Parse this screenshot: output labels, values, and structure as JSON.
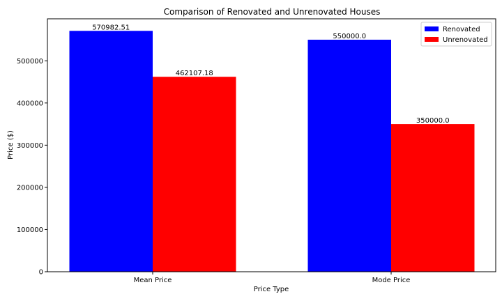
{
  "chart_data": {
    "type": "bar",
    "title": "Comparison of Renovated and Unrenovated Houses",
    "xlabel": "Price Type",
    "ylabel": "Price ($)",
    "categories": [
      "Mean Price",
      "Mode Price"
    ],
    "series": [
      {
        "name": "Renovated",
        "color": "#0000ff",
        "values": [
          570982.51,
          550000.0
        ],
        "labels": [
          "570982.51",
          "550000.0"
        ]
      },
      {
        "name": "Unrenovated",
        "color": "#ff0000",
        "values": [
          462107.18,
          350000.0
        ],
        "labels": [
          "462107.18",
          "350000.0"
        ]
      }
    ],
    "yticks": [
      0,
      100000,
      200000,
      300000,
      400000,
      500000
    ],
    "ylim": [
      0,
      599532
    ],
    "legend": "top-right",
    "grid": false
  }
}
